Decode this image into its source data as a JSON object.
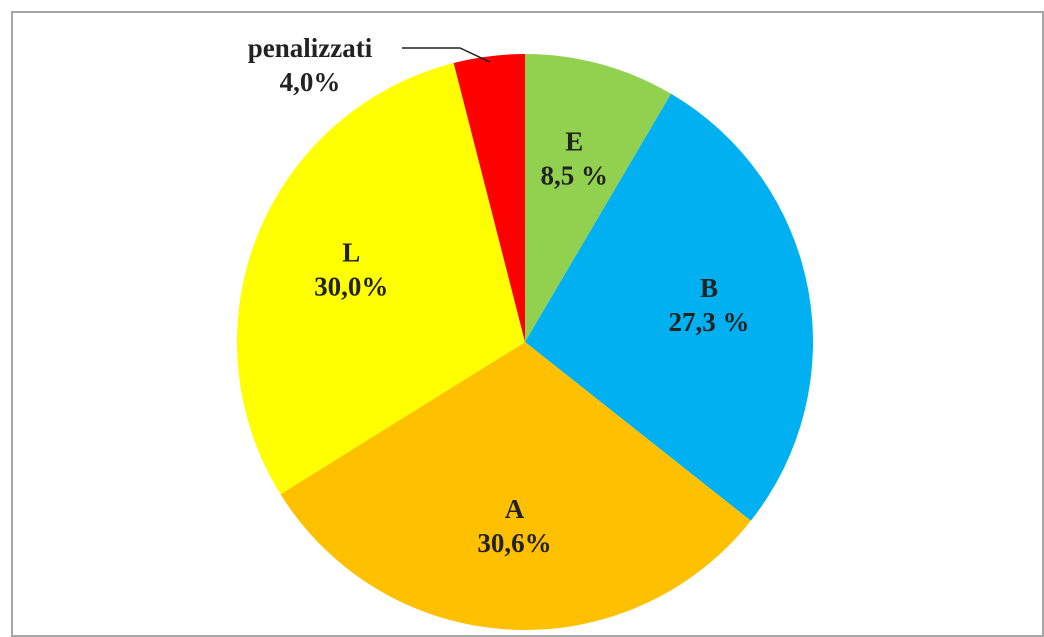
{
  "chart_data": {
    "type": "pie",
    "categories": [
      "E",
      "B",
      "A",
      "L",
      "penalizzati"
    ],
    "values": [
      8.5,
      27.3,
      30.6,
      30.0,
      4.0
    ],
    "value_labels": [
      "8,5 %",
      "27,3 %",
      "30,6%",
      "30,0%",
      "4,0%"
    ],
    "colors": [
      "#92d050",
      "#00b0f0",
      "#ffc000",
      "#ffff00",
      "#ff0000"
    ]
  }
}
